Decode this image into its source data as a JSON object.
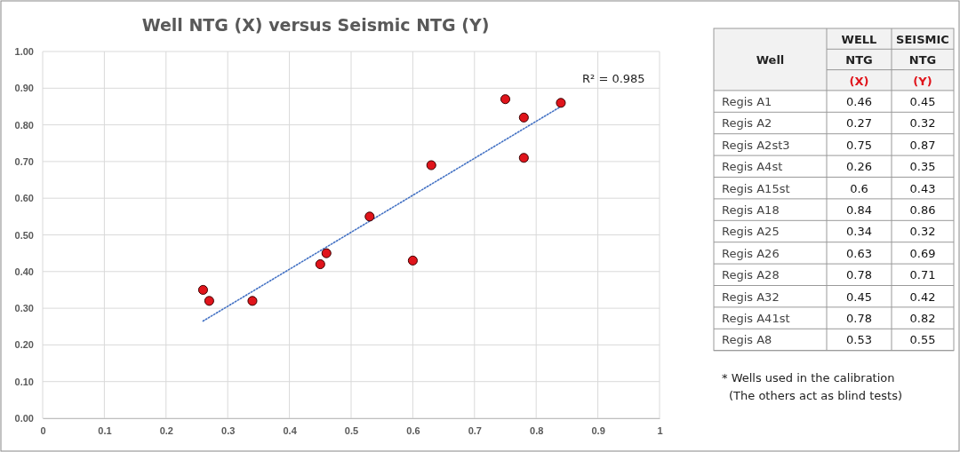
{
  "chart_data": [
    {
      "type": "scatter",
      "title": "Well NTG (X) versus Seismic NTG (Y)",
      "xlim": [
        0,
        1
      ],
      "ylim": [
        0,
        1
      ],
      "xticks": [
        0,
        0.1,
        0.2,
        0.3,
        0.4,
        0.5,
        0.6,
        0.7,
        0.8,
        0.9,
        1
      ],
      "yticks": [
        {
          "value": 0,
          "label": "0.00"
        },
        {
          "value": 0.1,
          "label": "0.10"
        },
        {
          "value": 0.2,
          "label": "0.20"
        },
        {
          "value": 0.3,
          "label": "0.30"
        },
        {
          "value": 0.4,
          "label": "0.40"
        },
        {
          "value": 0.5,
          "label": "0.50"
        },
        {
          "value": 0.6,
          "label": "0.60"
        },
        {
          "value": 0.7,
          "label": "0.70"
        },
        {
          "value": 0.8,
          "label": "0.80"
        },
        {
          "value": 0.9,
          "label": "0.90"
        },
        {
          "value": 1,
          "label": "1.00"
        }
      ],
      "grid": true,
      "marker": "circle",
      "series": [
        {
          "color": "#e0141b",
          "x": [
            0.46,
            0.27,
            0.75,
            0.26,
            0.6,
            0.84,
            0.34,
            0.63,
            0.78,
            0.45,
            0.78,
            0.53
          ],
          "values": [
            0.45,
            0.32,
            0.87,
            0.35,
            0.43,
            0.86,
            0.32,
            0.69,
            0.71,
            0.42,
            0.82,
            0.55
          ]
        },
        {
          "type": "line",
          "marker": "none",
          "color": "#4472c4",
          "line_style": "dotted",
          "x": [
            0.26,
            0.84
          ],
          "values": [
            0.265,
            0.85
          ]
        }
      ],
      "annotations": [
        "R² = 0.985"
      ]
    },
    {
      "type": "other",
      "annotations": [
        "Well",
        "WELL",
        "NTG",
        "(X)",
        "SEISMIC",
        "NTG",
        "(Y)",
        "Regis A1",
        "0.46",
        "0.45",
        "Regis A2",
        "0.27",
        "0.32",
        "Regis A2st3",
        "0.75",
        "0.87",
        "Regis A4st",
        "0.26",
        "0.35",
        "Regis A15st",
        "0.6",
        "0.43",
        "Regis A18",
        "0.84",
        "0.86",
        "Regis A25",
        "0.34",
        "0.32",
        "Regis A26",
        "0.63",
        "0.69",
        "Regis A28",
        "0.78",
        "0.71",
        "Regis A32",
        "0.45",
        "0.42",
        "Regis A41st",
        "0.78",
        "0.82",
        "Regis A8",
        "0.53",
        "0.55",
        "* Wells used in the calibration",
        "(The others act as blind tests)"
      ]
    }
  ]
}
